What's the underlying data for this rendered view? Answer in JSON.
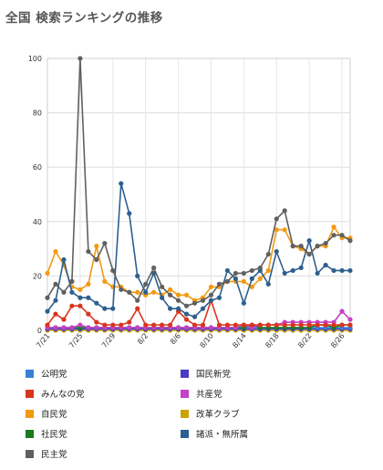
{
  "page": {
    "title": "全国 検索ランキングの推移"
  },
  "chart_data": {
    "type": "line",
    "ylim": [
      0,
      100
    ],
    "yticks": [
      0,
      20,
      40,
      60,
      80,
      100
    ],
    "xtick_labels": [
      "7/21",
      "7/25",
      "7/29",
      "8/2",
      "8/6",
      "8/10",
      "8/14",
      "8/18",
      "8/22",
      "8/26"
    ],
    "x": [
      "7/21",
      "7/22",
      "7/23",
      "7/24",
      "7/25",
      "7/26",
      "7/27",
      "7/28",
      "7/29",
      "7/30",
      "7/31",
      "8/1",
      "8/2",
      "8/3",
      "8/4",
      "8/5",
      "8/6",
      "8/7",
      "8/8",
      "8/9",
      "8/10",
      "8/11",
      "8/12",
      "8/13",
      "8/14",
      "8/15",
      "8/16",
      "8/17",
      "8/18",
      "8/19",
      "8/20",
      "8/21",
      "8/22",
      "8/23",
      "8/24",
      "8/25",
      "8/26",
      "8/27"
    ],
    "series": [
      {
        "name": "公明党",
        "color": "#3a7fd5",
        "values": [
          1,
          1,
          1,
          1,
          1,
          1,
          1,
          1,
          1,
          1,
          1,
          1,
          1,
          1,
          1,
          1,
          1,
          1,
          1,
          1,
          1,
          1,
          1,
          1,
          1,
          1,
          1,
          1,
          1,
          1,
          1,
          1,
          1,
          1,
          1,
          1,
          1,
          1
        ]
      },
      {
        "name": "国民新党",
        "color": "#4a3bc4",
        "values": [
          0.5,
          0.5,
          0.5,
          0.5,
          0.5,
          0.5,
          0.5,
          0.5,
          0.5,
          0.5,
          0.5,
          0.5,
          0.5,
          0.5,
          0.5,
          0.5,
          0.5,
          0.5,
          0.5,
          0.5,
          0.5,
          0.5,
          0.5,
          0.5,
          0.5,
          0.5,
          0.5,
          0.5,
          0.5,
          0.5,
          0.5,
          0.5,
          0.5,
          0.5,
          0.5,
          0.5,
          0.5,
          0.5
        ]
      },
      {
        "name": "みんなの党",
        "color": "#d9341e",
        "values": [
          2,
          6,
          4,
          9,
          9,
          6,
          3,
          2,
          2,
          2,
          3,
          8,
          2,
          2,
          2,
          2,
          7,
          4,
          2,
          2,
          11,
          2,
          2,
          2,
          2,
          2,
          2,
          2,
          2,
          2,
          2,
          2,
          2,
          2,
          2,
          2,
          2,
          2
        ]
      },
      {
        "name": "共産党",
        "color": "#c640c8",
        "values": [
          1,
          1,
          1,
          1,
          2,
          1,
          1,
          1,
          1,
          1,
          1,
          1,
          1,
          1,
          1,
          1,
          1,
          1,
          1,
          1,
          1,
          1,
          1,
          1,
          2,
          1,
          2,
          2,
          2,
          3,
          3,
          3,
          3,
          3,
          3,
          3,
          7,
          4
        ]
      },
      {
        "name": "自民党",
        "color": "#f29a12",
        "values": [
          21,
          29,
          24,
          16,
          15,
          17,
          31,
          18,
          16,
          16,
          14,
          14,
          13,
          14,
          13,
          15,
          13,
          13,
          11,
          12,
          16,
          16,
          18,
          18,
          18,
          16,
          19,
          22,
          37,
          37,
          31,
          30,
          28,
          31,
          31,
          38,
          34,
          34
        ]
      },
      {
        "name": "改革クラブ",
        "color": "#c9a400",
        "values": [
          0,
          0,
          0,
          0,
          0,
          0,
          0,
          0,
          0,
          0,
          0,
          0,
          0,
          0,
          0,
          0,
          0,
          0,
          0,
          0,
          0,
          0,
          0,
          0,
          0,
          0,
          0,
          0,
          0,
          0,
          0,
          0,
          0,
          0,
          0,
          0,
          0,
          0
        ]
      },
      {
        "name": "社民党",
        "color": "#197a1f",
        "values": [
          1,
          1,
          1,
          1,
          1,
          1,
          1,
          1,
          1,
          1,
          1,
          1,
          1,
          1,
          1,
          1,
          1,
          1,
          1,
          1,
          1,
          1,
          1,
          1,
          1,
          2,
          1,
          1,
          1,
          1,
          1,
          1,
          1,
          2,
          2,
          1,
          2,
          2
        ]
      },
      {
        "name": "諸派・無所属",
        "color": "#2d5f8f",
        "values": [
          7,
          11,
          26,
          14,
          12,
          12,
          10,
          8,
          8,
          54,
          43,
          20,
          14,
          21,
          12,
          8,
          8,
          6,
          5,
          8,
          11,
          12,
          22,
          19,
          10,
          19,
          22,
          17,
          29,
          21,
          22,
          23,
          33,
          21,
          24,
          22,
          22,
          22
        ]
      },
      {
        "name": "民主党",
        "color": "#606060",
        "values": [
          12,
          17,
          14,
          18,
          100,
          29,
          26,
          32,
          22,
          15,
          14,
          11,
          17,
          23,
          16,
          13,
          11,
          9,
          10,
          11,
          13,
          17,
          18,
          21,
          21,
          22,
          23,
          28,
          41,
          44,
          31,
          31,
          28,
          31,
          32,
          35,
          35,
          33
        ]
      }
    ]
  }
}
